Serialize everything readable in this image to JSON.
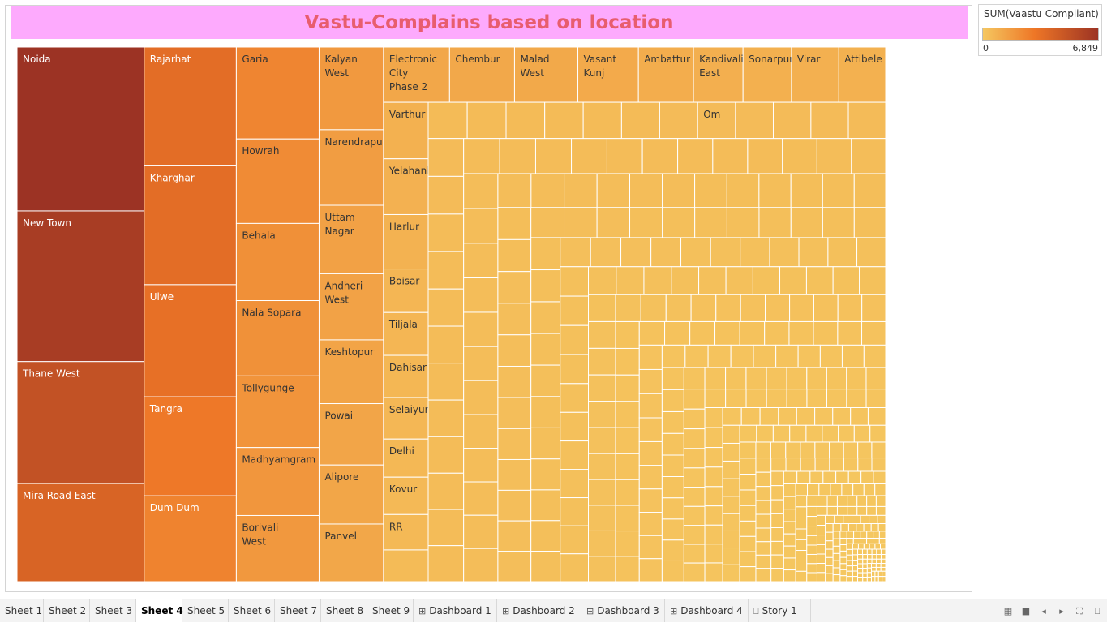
{
  "chart_data": {
    "type": "treemap",
    "title": "Vastu-Complains based on location",
    "measure": "SUM(Vaastu Compliant)",
    "color_range": [
      0,
      6849
    ],
    "color_range_labels": [
      "0",
      "6,849"
    ],
    "colors": {
      "low": "#f5c760",
      "mid": "#ee7626",
      "high": "#9c3324",
      "title_band": "#fdaafd",
      "title_text": "#e85d6e"
    },
    "labeled_cells": [
      {
        "name": "Noida",
        "value": 6849
      },
      {
        "name": "New Town",
        "value": 6300
      },
      {
        "name": "Thane West",
        "value": 5100
      },
      {
        "name": "Mira Road East",
        "value": 4100
      },
      {
        "name": "Rajarhat",
        "value": 3600
      },
      {
        "name": "Kharghar",
        "value": 3600
      },
      {
        "name": "Ulwe",
        "value": 3400
      },
      {
        "name": "Tangra",
        "value": 3000
      },
      {
        "name": "Dum Dum",
        "value": 2600
      },
      {
        "name": "Garia",
        "value": 2500
      },
      {
        "name": "Howrah",
        "value": 2300
      },
      {
        "name": "Behala",
        "value": 2100
      },
      {
        "name": "Nala Sopara",
        "value": 2050
      },
      {
        "name": "Tollygunge",
        "value": 1950
      },
      {
        "name": "Madhyamgram",
        "value": 1850
      },
      {
        "name": "Borivali West",
        "value": 1800
      },
      {
        "name": "Kalyan West",
        "value": 1750
      },
      {
        "name": "Narendrapur",
        "value": 1600
      },
      {
        "name": "Uttam Nagar",
        "value": 1450
      },
      {
        "name": "Andheri West",
        "value": 1400
      },
      {
        "name": "Keshtopur",
        "value": 1350
      },
      {
        "name": "Powai",
        "value": 1300
      },
      {
        "name": "Alipore",
        "value": 1250
      },
      {
        "name": "Panvel",
        "value": 1220
      },
      {
        "name": "Electronic City Phase 2",
        "value": 1200
      },
      {
        "name": "Chembur",
        "value": 1180
      },
      {
        "name": "Malad West",
        "value": 1150
      },
      {
        "name": "Vasant Kunj",
        "value": 1100
      },
      {
        "name": "Ambattur",
        "value": 1000
      },
      {
        "name": "Kandivali East",
        "value": 900
      },
      {
        "name": "Sonarpur",
        "value": 880
      },
      {
        "name": "Virar",
        "value": 860
      },
      {
        "name": "Attibele",
        "value": 850
      },
      {
        "name": "Varthur",
        "value": 830
      },
      {
        "name": "Yelahanka",
        "value": 820
      },
      {
        "name": "Harlur",
        "value": 800
      },
      {
        "name": "Boisar",
        "value": 640
      },
      {
        "name": "Tiljala",
        "value": 630
      },
      {
        "name": "Dahisar",
        "value": 620
      },
      {
        "name": "Selaiyur",
        "value": 610
      },
      {
        "name": "Delhi",
        "value": 560
      },
      {
        "name": "Kovur",
        "value": 550
      },
      {
        "name": "RR",
        "value": 520
      },
      {
        "name": "Om",
        "value": 450
      }
    ]
  },
  "legend": {
    "title": "SUM(Vaastu Compliant)",
    "min_label": "0",
    "max_label": "6,849"
  },
  "tabs": [
    {
      "label": "Sheet 1",
      "type": "sheet"
    },
    {
      "label": "Sheet 2",
      "type": "sheet"
    },
    {
      "label": "Sheet 3",
      "type": "sheet"
    },
    {
      "label": "Sheet 4",
      "type": "sheet",
      "active": true
    },
    {
      "label": "Sheet 5",
      "type": "sheet"
    },
    {
      "label": "Sheet 6",
      "type": "sheet"
    },
    {
      "label": "Sheet 7",
      "type": "sheet"
    },
    {
      "label": "Sheet 8",
      "type": "sheet"
    },
    {
      "label": "Sheet 9",
      "type": "sheet"
    },
    {
      "label": "Dashboard 1",
      "type": "dashboard"
    },
    {
      "label": "Dashboard 2",
      "type": "dashboard"
    },
    {
      "label": "Dashboard 3",
      "type": "dashboard"
    },
    {
      "label": "Dashboard 4",
      "type": "dashboard"
    },
    {
      "label": "Story 1",
      "type": "story"
    }
  ],
  "toolbar_icons": [
    "grid-view-icon",
    "filmstrip-icon",
    "prev-sheet-icon",
    "next-sheet-icon",
    "fullscreen-icon",
    "present-icon"
  ]
}
